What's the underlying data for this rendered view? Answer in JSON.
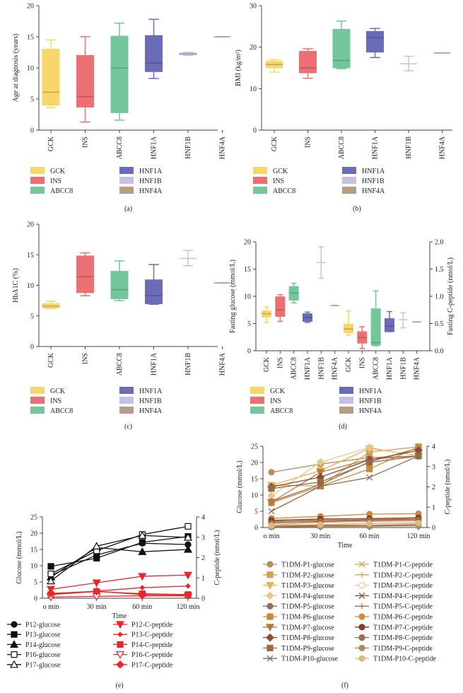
{
  "colors": {
    "GCK": "#f8d66a",
    "INS": "#ec6f73",
    "ABCC8": "#73c79a",
    "HNF1A": "#6a6cb8",
    "HNF1B": "#c5c1e3",
    "HNF4A": "#b79c86",
    "red": "#e8262b",
    "black": "#111111",
    "axis": "#444444"
  },
  "legend_genes": [
    "GCK",
    "INS",
    "ABCC8",
    "HNF1A",
    "HNF1B",
    "HNF4A"
  ],
  "panel_labels": [
    "(a)",
    "(b)",
    "(c)",
    "(d)",
    "(e)",
    "(f)"
  ],
  "chart_data": [
    {
      "id": "a",
      "type": "box",
      "title": "",
      "ylabel": "Age at diagnosis (years)",
      "ylim": [
        0,
        20
      ],
      "yticks": [
        0,
        5,
        10,
        15,
        20
      ],
      "categories": [
        "GCK",
        "INS",
        "ABCC8",
        "HNF1A",
        "HNF1B",
        "HNF4A"
      ],
      "boxes": [
        {
          "name": "GCK",
          "min": 3.6,
          "q1": 4.0,
          "median": 6.1,
          "q3": 13.0,
          "max": 14.5
        },
        {
          "name": "INS",
          "min": 1.3,
          "q1": 3.7,
          "median": 5.4,
          "q3": 12.0,
          "max": 15.0
        },
        {
          "name": "ABCC8",
          "min": 1.6,
          "q1": 2.8,
          "median": 10.0,
          "q3": 15.1,
          "max": 17.2
        },
        {
          "name": "HNF1A",
          "min": 8.3,
          "q1": 9.4,
          "median": 10.8,
          "q3": 15.2,
          "max": 17.8
        },
        {
          "name": "HNF1B",
          "min": 12.0,
          "q1": 12.1,
          "median": 12.25,
          "q3": 12.4,
          "max": 12.5
        },
        {
          "name": "HNF4A",
          "min": 15.0,
          "q1": 15.0,
          "median": 15.0,
          "q3": 15.0,
          "max": 15.0
        }
      ]
    },
    {
      "id": "b",
      "type": "box",
      "title": "",
      "ylabel": "BMI (kg/m²)",
      "ylim": [
        0,
        30
      ],
      "yticks": [
        0,
        10,
        20,
        30
      ],
      "categories": [
        "GCK",
        "INS",
        "ABCC8",
        "HNF1A",
        "HNF1B",
        "HNF4A"
      ],
      "boxes": [
        {
          "name": "GCK",
          "min": 14.0,
          "q1": 15.0,
          "median": 15.8,
          "q3": 16.6,
          "max": 17.0
        },
        {
          "name": "INS",
          "min": 12.5,
          "q1": 13.8,
          "median": 15.0,
          "q3": 19.0,
          "max": 19.6
        },
        {
          "name": "ABCC8",
          "min": 14.8,
          "q1": 15.0,
          "median": 16.8,
          "q3": 24.3,
          "max": 26.3
        },
        {
          "name": "HNF1A",
          "min": 17.5,
          "q1": 18.8,
          "median": 22.3,
          "q3": 23.8,
          "max": 24.5
        },
        {
          "name": "HNF1B",
          "min": 14.3,
          "q1": 16.0,
          "median": 16.0,
          "q3": 16.0,
          "max": 17.8
        },
        {
          "name": "HNF4A",
          "min": 18.6,
          "q1": 18.6,
          "median": 18.6,
          "q3": 18.6,
          "max": 18.6
        }
      ]
    },
    {
      "id": "c",
      "type": "box",
      "title": "",
      "ylabel": "HbA1C (%)",
      "ylim": [
        0,
        20
      ],
      "yticks": [
        0,
        5,
        10,
        15,
        20
      ],
      "categories": [
        "GCK",
        "INS",
        "ABCC8",
        "HNF1A",
        "HNF1B",
        "HNF4A"
      ],
      "boxes": [
        {
          "name": "GCK",
          "min": 6.2,
          "q1": 6.3,
          "median": 6.6,
          "q3": 7.0,
          "max": 7.4
        },
        {
          "name": "INS",
          "min": 8.3,
          "q1": 8.8,
          "median": 11.4,
          "q3": 14.8,
          "max": 15.3
        },
        {
          "name": "ABCC8",
          "min": 7.5,
          "q1": 7.8,
          "median": 9.3,
          "q3": 12.3,
          "max": 14.0
        },
        {
          "name": "HNF1A",
          "min": 6.9,
          "q1": 7.0,
          "median": 8.3,
          "q3": 10.9,
          "max": 13.4
        },
        {
          "name": "HNF1B",
          "min": 13.2,
          "q1": 14.4,
          "median": 14.4,
          "q3": 14.4,
          "max": 15.7
        },
        {
          "name": "HNF4A",
          "min": 10.4,
          "q1": 10.4,
          "median": 10.4,
          "q3": 10.4,
          "max": 10.4
        }
      ]
    },
    {
      "id": "d",
      "type": "box",
      "title": "",
      "ylabel": "Fasting glucose (mmol/L)",
      "ylim": [
        0,
        20
      ],
      "yticks": [
        0,
        5,
        10,
        15,
        20
      ],
      "y2label": "Fasting C-peptide (nmol/L)",
      "y2lim": [
        0,
        2.0
      ],
      "y2ticks": [
        "0.0",
        "0.5",
        "1.0",
        "1.5",
        "2.0"
      ],
      "categories": [
        "GCK",
        "INS",
        "ABCC8",
        "HNF1A",
        "HNF1B",
        "HNF4A",
        "GCK",
        "INS",
        "ABCC8",
        "HNF1A",
        "HNF1B",
        "HNF4A"
      ],
      "boxes": [
        {
          "name": "GCK",
          "axis": "left",
          "min": 5.2,
          "q1": 6.2,
          "median": 6.8,
          "q3": 7.3,
          "max": 8.0
        },
        {
          "name": "INS",
          "axis": "left",
          "min": 5.4,
          "q1": 6.3,
          "median": 7.5,
          "q3": 9.9,
          "max": 10.3
        },
        {
          "name": "ABCC8",
          "axis": "left",
          "min": 8.8,
          "q1": 9.3,
          "median": 10.6,
          "q3": 11.8,
          "max": 12.4
        },
        {
          "name": "HNF1A",
          "axis": "left",
          "min": 5.2,
          "q1": 5.4,
          "median": 6.1,
          "q3": 6.8,
          "max": 7.1
        },
        {
          "name": "HNF1B",
          "axis": "left",
          "min": 13.3,
          "q1": 16.2,
          "median": 16.2,
          "q3": 16.2,
          "max": 19.1
        },
        {
          "name": "HNF4A",
          "axis": "left",
          "min": 8.3,
          "q1": 8.3,
          "median": 8.3,
          "q3": 8.3,
          "max": 8.3
        },
        {
          "name": "GCK",
          "axis": "right",
          "min": 0.29,
          "q1": 0.33,
          "median": 0.4,
          "q3": 0.49,
          "max": 0.73
        },
        {
          "name": "INS",
          "axis": "right",
          "min": 0.04,
          "q1": 0.14,
          "median": 0.24,
          "q3": 0.35,
          "max": 0.44
        },
        {
          "name": "ABCC8",
          "axis": "right",
          "min": 0.09,
          "q1": 0.1,
          "median": 0.15,
          "q3": 0.77,
          "max": 1.1
        },
        {
          "name": "HNF1A",
          "axis": "right",
          "min": 0.35,
          "q1": 0.35,
          "median": 0.45,
          "q3": 0.59,
          "max": 0.72
        },
        {
          "name": "HNF1B",
          "axis": "right",
          "min": 0.42,
          "q1": 0.57,
          "median": 0.57,
          "q3": 0.57,
          "max": 0.7
        },
        {
          "name": "HNF4A",
          "axis": "right",
          "min": 0.53,
          "q1": 0.53,
          "median": 0.53,
          "q3": 0.53,
          "max": 0.53
        }
      ]
    },
    {
      "id": "e",
      "type": "line",
      "title": "",
      "xlabel": "Time",
      "ylabel": "Glucose (mmol/L)",
      "y2label": "C-peptide (nmol/L)",
      "x": [
        "o min",
        "30 min",
        "60 min",
        "120 min"
      ],
      "ylim": [
        0,
        25
      ],
      "yticks": [
        0,
        5,
        10,
        15,
        20,
        25
      ],
      "y2lim": [
        0,
        4
      ],
      "y2ticks": [
        0,
        1,
        2,
        3,
        4
      ],
      "series": [
        {
          "name": "P12-glucose",
          "axis": "left",
          "marker": "circle",
          "color": "#111111",
          "values": [
            7.0,
            13.3,
            16.9,
            16.5
          ]
        },
        {
          "name": "P13-glucose",
          "axis": "left",
          "marker": "square",
          "color": "#111111",
          "values": [
            9.8,
            12.3,
            17.2,
            19.0
          ]
        },
        {
          "name": "P14-glucose",
          "axis": "left",
          "marker": "triangle",
          "color": "#111111",
          "values": [
            6.5,
            15.6,
            14.3,
            15.0
          ]
        },
        {
          "name": "P16-glucose",
          "axis": "left",
          "marker": "square-open",
          "color": "#111111",
          "values": [
            7.5,
            14.6,
            19.6,
            22.1
          ]
        },
        {
          "name": "P17-glucose",
          "axis": "left",
          "marker": "triangle-open",
          "color": "#111111",
          "values": [
            5.3,
            16.0,
            19.3,
            18.7
          ]
        },
        {
          "name": "P12-C-peptide",
          "axis": "right",
          "marker": "triangle-down",
          "color": "#e8262b",
          "values": [
            0.44,
            0.76,
            1.08,
            1.14
          ]
        },
        {
          "name": "P13-C-peptide",
          "axis": "right",
          "marker": "diamond-small",
          "color": "#e8262b",
          "values": [
            0.2,
            0.35,
            0.52,
            0.6
          ]
        },
        {
          "name": "P14-C-peptide",
          "axis": "right",
          "marker": "square",
          "color": "#e8262b",
          "values": [
            0.18,
            0.33,
            0.22,
            0.18
          ]
        },
        {
          "name": "P16-C-peptide",
          "axis": "right",
          "marker": "triangle-down-open",
          "color": "#e8262b",
          "values": [
            0.06,
            0.09,
            0.12,
            0.12
          ]
        },
        {
          "name": "P17-C-peptide",
          "axis": "right",
          "marker": "diamond",
          "color": "#e8262b",
          "values": [
            0.24,
            0.34,
            0.18,
            0.16
          ]
        }
      ]
    },
    {
      "id": "f",
      "type": "line",
      "title": "",
      "xlabel": "Time",
      "ylabel": "Glucose (mmol/L)",
      "y2label": "C-peptide (nmol/L)",
      "x": [
        "o min",
        "30 min",
        "60 min",
        "120 min"
      ],
      "ylim": [
        0,
        25
      ],
      "yticks": [
        0,
        5,
        10,
        15,
        20,
        25
      ],
      "y2lim": [
        0,
        4
      ],
      "y2ticks": [
        0,
        1,
        2,
        3,
        4
      ],
      "series": [
        {
          "name": "T1DM-P1-glucose",
          "axis": "left",
          "marker": "circle",
          "color": "#b89060",
          "values": [
            17.0,
            19.5,
            21.5,
            22.0
          ]
        },
        {
          "name": "T1DM-P2-glucose",
          "axis": "left",
          "marker": "square",
          "color": "#d4a050",
          "values": [
            13.0,
            12.8,
            23.2,
            24.8
          ]
        },
        {
          "name": "T1DM-P3-glucose",
          "axis": "left",
          "marker": "triangle-down",
          "color": "#e8b450",
          "values": [
            13.0,
            17.5,
            24.3,
            22.1
          ]
        },
        {
          "name": "T1DM-P4-glucose",
          "axis": "left",
          "marker": "diamond",
          "color": "#e6c98a",
          "values": [
            9.8,
            20.1,
            24.6,
            21.9
          ]
        },
        {
          "name": "T1DM-P5-glucose",
          "axis": "left",
          "marker": "circle",
          "color": "#9a6a55",
          "values": [
            8.0,
            13.2,
            20.2,
            24.4
          ]
        },
        {
          "name": "T1DM-P6-glucose",
          "axis": "left",
          "marker": "square",
          "color": "#c88a3a",
          "values": [
            7.6,
            12.7,
            18.0,
            24.8
          ]
        },
        {
          "name": "T1DM-P7-glucose",
          "axis": "left",
          "marker": "triangle-down",
          "color": "#b87838",
          "values": [
            7.8,
            17.0,
            21.0,
            22.0
          ]
        },
        {
          "name": "T1DM-P8-glucose",
          "axis": "left",
          "marker": "diamond",
          "color": "#8a4a3a",
          "values": [
            12.5,
            15.5,
            20.8,
            23.7
          ]
        },
        {
          "name": "T1DM-P9-glucose",
          "axis": "left",
          "marker": "square",
          "color": "#9a6a40",
          "values": [
            12.0,
            14.0,
            20.0,
            22.0
          ]
        },
        {
          "name": "T1DM-P10-glucose",
          "axis": "left",
          "marker": "cross",
          "color": "#8a6a50",
          "values": [
            5.0,
            12.7,
            15.4,
            22.0
          ]
        },
        {
          "name": "T1DM-P1-C-peptide",
          "axis": "right",
          "marker": "cross",
          "color": "#d8a060",
          "values": [
            0.12,
            0.26,
            0.3,
            0.32
          ]
        },
        {
          "name": "T1DM-P2-C-peptide",
          "axis": "right",
          "marker": "plus",
          "color": "#d4a050",
          "values": [
            0.25,
            0.4,
            0.43,
            0.42
          ]
        },
        {
          "name": "T1DM-P3-C-peptide",
          "axis": "right",
          "marker": "circle-open",
          "color": "#e6c98a",
          "values": [
            0.08,
            0.12,
            0.18,
            0.2
          ]
        },
        {
          "name": "T1DM-P4-C-peptide",
          "axis": "right",
          "marker": "cross",
          "color": "#8a4a3a",
          "values": [
            0.05,
            0.1,
            0.1,
            0.14
          ]
        },
        {
          "name": "T1DM-P5-C-peptide",
          "axis": "right",
          "marker": "plus",
          "color": "#a06a50",
          "values": [
            0.3,
            0.34,
            0.38,
            0.4
          ]
        },
        {
          "name": "T1DM-P6-C-peptide",
          "axis": "right",
          "marker": "circle",
          "color": "#d08a38",
          "values": [
            0.45,
            0.55,
            0.66,
            0.68
          ]
        },
        {
          "name": "T1DM-P7-C-peptide",
          "axis": "right",
          "marker": "circle",
          "color": "#8a3a2a",
          "values": [
            0.35,
            0.42,
            0.44,
            0.48
          ]
        },
        {
          "name": "T1DM-P8-C-peptide",
          "axis": "right",
          "marker": "circle",
          "color": "#9a6a55",
          "values": [
            0.22,
            0.3,
            0.35,
            0.38
          ]
        },
        {
          "name": "T1DM-P9-C-peptide",
          "axis": "right",
          "marker": "circle",
          "color": "#a88a60",
          "values": [
            0.03,
            0.05,
            0.06,
            0.08
          ]
        },
        {
          "name": "T1DM-P10-C-peptide",
          "axis": "right",
          "marker": "circle",
          "color": "#e0b878",
          "values": [
            0.1,
            0.15,
            0.2,
            0.22
          ]
        }
      ]
    }
  ]
}
